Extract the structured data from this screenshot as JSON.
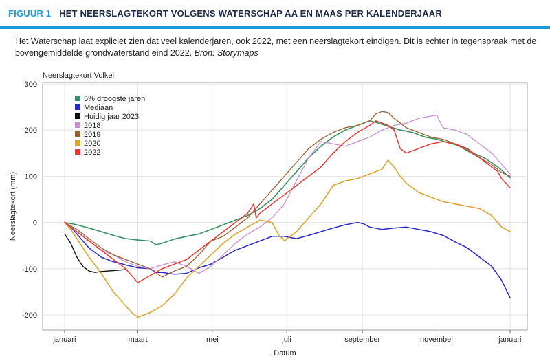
{
  "header": {
    "figure_label": "FIGUUR 1",
    "title": "HET NEERSLAGTEKORT VOLGENS WATERSCHAP AA EN MAAS PER KALENDERJAAR"
  },
  "caption": {
    "text": "Het Waterschap laat expliciet zien dat veel kalenderjaren, ook 2022, met een neerslagtekort eindigen. Dit is echter in tegenspraak met de bovengemiddelde grondwaterstand eind 2022.",
    "source": "Bron: Storymaps"
  },
  "colors": {
    "accent": "#1a9bd7",
    "title": "#1e2a4a",
    "grid": "#dddddd"
  },
  "chart_data": {
    "type": "line",
    "title": "Neerslagtekort Volkel",
    "xlabel": "Datum",
    "ylabel": "Neerslagtekort (mm)",
    "xlim": [
      0,
      365
    ],
    "ylim": [
      -220,
      300
    ],
    "grid": true,
    "legend_position": "top-left",
    "y_ticks": [
      300,
      200,
      100,
      0,
      -100,
      -200
    ],
    "x_ticks": [
      {
        "day": 0,
        "label": "januari"
      },
      {
        "day": 60,
        "label": "maart"
      },
      {
        "day": 121,
        "label": "mei"
      },
      {
        "day": 182,
        "label": "juli"
      },
      {
        "day": 244,
        "label": "september"
      },
      {
        "day": 305,
        "label": "november"
      },
      {
        "day": 365,
        "label": "januari"
      }
    ],
    "series": [
      {
        "name": "5% droogste jaren",
        "color": "#3a8f65",
        "width": 1.6,
        "x": [
          0,
          10,
          20,
          30,
          40,
          50,
          60,
          70,
          75,
          80,
          90,
          100,
          110,
          120,
          130,
          140,
          150,
          160,
          170,
          180,
          190,
          200,
          210,
          220,
          230,
          240,
          250,
          257,
          265,
          275,
          285,
          295,
          305,
          315,
          325,
          335,
          345,
          355,
          365
        ],
        "y": [
          0,
          -5,
          -12,
          -20,
          -28,
          -35,
          -38,
          -40,
          -48,
          -45,
          -36,
          -30,
          -25,
          -15,
          -5,
          5,
          15,
          30,
          50,
          80,
          110,
          140,
          165,
          185,
          200,
          210,
          220,
          215,
          208,
          200,
          195,
          185,
          180,
          172,
          165,
          150,
          138,
          120,
          97
        ]
      },
      {
        "name": "Mediaan",
        "color": "#2929c4",
        "width": 1.5,
        "x": [
          0,
          5,
          10,
          15,
          20,
          25,
          30,
          35,
          40,
          45,
          50,
          55,
          60,
          70,
          75,
          80,
          90,
          100,
          110,
          120,
          130,
          140,
          150,
          160,
          170,
          180,
          190,
          200,
          210,
          220,
          230,
          240,
          245,
          250,
          260,
          270,
          280,
          290,
          300,
          310,
          320,
          330,
          340,
          350,
          358,
          365
        ],
        "y": [
          0,
          -10,
          -25,
          -40,
          -55,
          -65,
          -75,
          -80,
          -85,
          -88,
          -92,
          -95,
          -98,
          -100,
          -108,
          -108,
          -112,
          -110,
          -98,
          -90,
          -75,
          -60,
          -50,
          -40,
          -30,
          -30,
          -35,
          -28,
          -20,
          -12,
          -5,
          0,
          -3,
          -10,
          -15,
          -12,
          -10,
          -15,
          -20,
          -28,
          -42,
          -55,
          -75,
          -95,
          -125,
          -163
        ]
      },
      {
        "name": "Huidig jaar 2023",
        "color": "#111111",
        "width": 1.4,
        "x": [
          0,
          5,
          10,
          15,
          20,
          25,
          30,
          35,
          40,
          45,
          50
        ],
        "y": [
          -25,
          -45,
          -75,
          -95,
          -105,
          -108,
          -106,
          -105,
          -104,
          -103,
          -102
        ]
      },
      {
        "name": "2018",
        "color": "#c98fd1",
        "width": 1.3,
        "x": [
          0,
          10,
          20,
          30,
          40,
          50,
          60,
          70,
          80,
          90,
          100,
          110,
          120,
          130,
          140,
          150,
          160,
          170,
          180,
          190,
          200,
          210,
          220,
          230,
          240,
          250,
          260,
          270,
          280,
          290,
          300,
          305,
          310,
          320,
          330,
          340,
          350,
          365
        ],
        "y": [
          0,
          -20,
          -40,
          -60,
          -70,
          -85,
          -95,
          -100,
          -92,
          -85,
          -95,
          -110,
          -95,
          -70,
          -45,
          -25,
          -10,
          10,
          40,
          90,
          140,
          175,
          170,
          165,
          175,
          185,
          200,
          210,
          215,
          225,
          230,
          232,
          205,
          200,
          190,
          170,
          150,
          105
        ]
      },
      {
        "name": "2019",
        "color": "#9b6134",
        "width": 1.3,
        "x": [
          0,
          10,
          20,
          30,
          40,
          50,
          60,
          70,
          80,
          90,
          100,
          110,
          120,
          130,
          140,
          150,
          160,
          170,
          180,
          190,
          200,
          210,
          220,
          230,
          240,
          250,
          255,
          260,
          265,
          270,
          280,
          290,
          300,
          310,
          320,
          330,
          340,
          350,
          358,
          365
        ],
        "y": [
          0,
          -15,
          -35,
          -55,
          -70,
          -80,
          -90,
          -100,
          -118,
          -105,
          -95,
          -70,
          -40,
          -30,
          -10,
          10,
          40,
          70,
          100,
          130,
          160,
          180,
          195,
          205,
          210,
          220,
          235,
          240,
          238,
          225,
          205,
          195,
          185,
          180,
          170,
          155,
          140,
          125,
          108,
          100
        ]
      },
      {
        "name": "2020",
        "color": "#dea331",
        "width": 1.6,
        "x": [
          0,
          5,
          10,
          15,
          20,
          30,
          40,
          50,
          55,
          60,
          65,
          70,
          80,
          90,
          100,
          110,
          120,
          130,
          140,
          150,
          160,
          170,
          175,
          180,
          185,
          190,
          200,
          210,
          220,
          230,
          240,
          245,
          250,
          260,
          265,
          270,
          275,
          280,
          285,
          290,
          300,
          310,
          320,
          330,
          340,
          350,
          358,
          365
        ],
        "y": [
          0,
          -15,
          -35,
          -55,
          -75,
          -110,
          -150,
          -180,
          -195,
          -205,
          -200,
          -195,
          -180,
          -155,
          -120,
          -95,
          -70,
          -45,
          -25,
          -10,
          5,
          0,
          -25,
          -40,
          -30,
          -20,
          10,
          40,
          80,
          90,
          95,
          100,
          105,
          115,
          135,
          120,
          100,
          85,
          75,
          65,
          55,
          45,
          40,
          35,
          30,
          15,
          -10,
          -20
        ]
      },
      {
        "name": "2022",
        "color": "#e53a34",
        "width": 1.5,
        "x": [
          0,
          10,
          20,
          30,
          40,
          50,
          55,
          60,
          70,
          80,
          90,
          100,
          110,
          120,
          130,
          140,
          150,
          155,
          157,
          160,
          170,
          180,
          190,
          200,
          210,
          220,
          230,
          240,
          250,
          255,
          260,
          265,
          270,
          275,
          280,
          290,
          300,
          310,
          320,
          330,
          340,
          350,
          355,
          358,
          365
        ],
        "y": [
          0,
          -20,
          -40,
          -60,
          -80,
          -100,
          -115,
          -130,
          -115,
          -100,
          -90,
          -80,
          -60,
          -40,
          -20,
          0,
          20,
          40,
          10,
          20,
          40,
          60,
          80,
          100,
          120,
          150,
          175,
          195,
          210,
          220,
          215,
          210,
          200,
          160,
          150,
          160,
          170,
          175,
          170,
          160,
          140,
          120,
          110,
          95,
          75
        ]
      }
    ]
  }
}
